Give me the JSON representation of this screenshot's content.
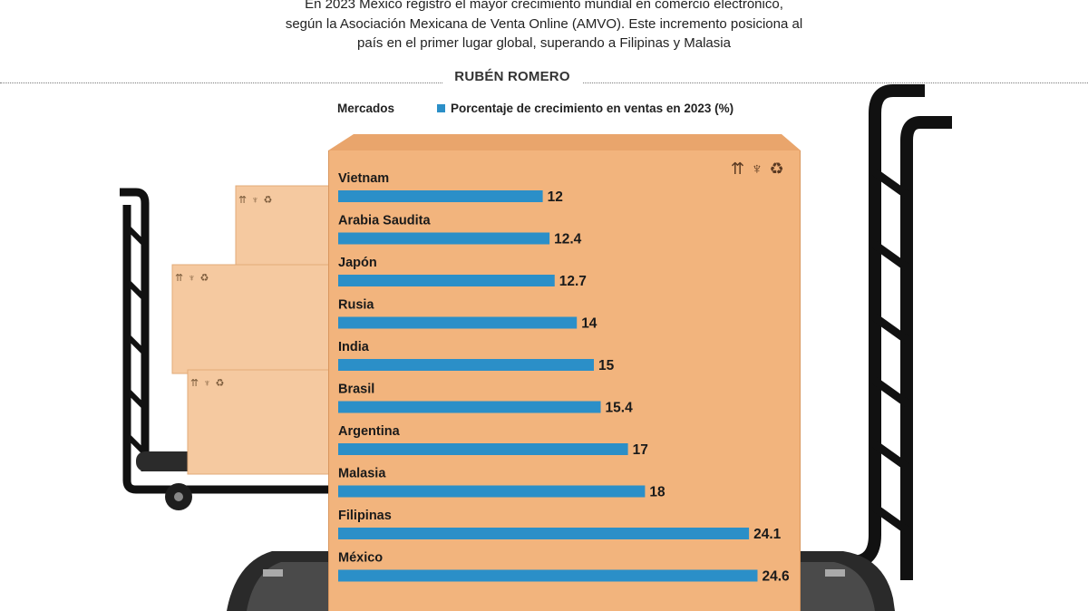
{
  "header": {
    "subtitle": "En 2023 México registró el mayor crecimiento mundial en comercio electrónico,\nsegún la Asociación Mexicana de Venta Online (AMVO). Este incremento posiciona al\npaís en el primer lugar global, superando a Filipinas y Malasia",
    "author": "RUBÉN ROMERO"
  },
  "legend": {
    "category_label": "Mercados",
    "series_label": "Porcentaje de crecimiento en ventas en 2023 (%)"
  },
  "icons": {
    "box_symbols": "⇈ ♆ ♻",
    "names": [
      "this-side-up-icon",
      "fragile-glass-icon",
      "recycle-icon"
    ]
  },
  "colors": {
    "bar": "#2b8fc8",
    "box": "#f2b47d",
    "cart": "#111111"
  },
  "chart_data": {
    "type": "bar",
    "orientation": "horizontal",
    "categories": [
      "Vietnam",
      "Arabia Saudita",
      "Japón",
      "Rusia",
      "India",
      "Brasil",
      "Argentina",
      "Malasia",
      "Filipinas",
      "México"
    ],
    "series": [
      {
        "name": "Porcentaje de crecimiento en ventas en 2023 (%)",
        "values": [
          12,
          12.4,
          12.7,
          14,
          15,
          15.4,
          17,
          18,
          24.1,
          24.6
        ],
        "labels": [
          "12",
          "12.4",
          "12.7",
          "14",
          "15",
          "15.4",
          "17",
          "18",
          "24.1",
          "24.6"
        ]
      }
    ],
    "xlim": [
      0,
      25
    ],
    "grid": false,
    "legend_position": "top"
  }
}
